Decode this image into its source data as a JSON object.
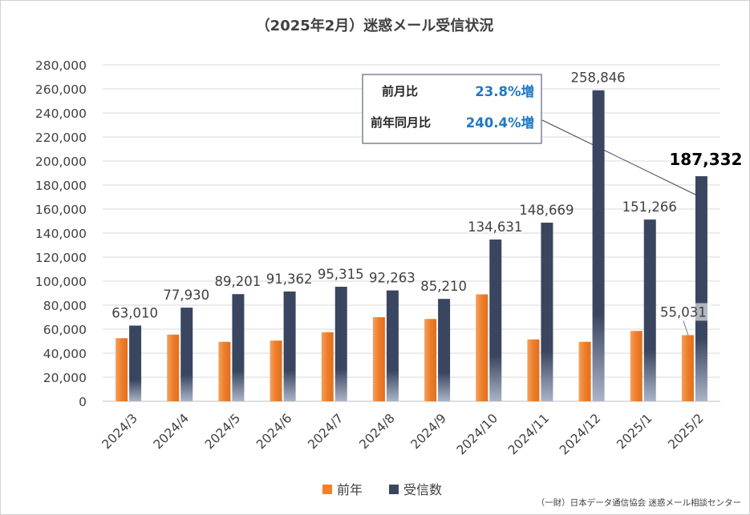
{
  "title": "（2025年2月）迷惑メール受信状況",
  "source": "（一財）日本データ通信協会 迷惑メール相談センター",
  "stats": {
    "mom_label": "前月比",
    "mom_value": "23.8%増",
    "yoy_label": "前年同月比",
    "yoy_value": "240.4%増"
  },
  "colors": {
    "previous_year": "#f0822a",
    "received": "#3a4660",
    "grid": "#d9d9d9",
    "accent_text": "#1f78c8"
  },
  "chart_data": {
    "type": "bar",
    "categories": [
      "2024/3",
      "2024/4",
      "2024/5",
      "2024/6",
      "2024/7",
      "2024/8",
      "2024/9",
      "2024/10",
      "2024/11",
      "2024/12",
      "2025/1",
      "2025/2"
    ],
    "series": [
      {
        "name": "前年",
        "values": [
          52500,
          55500,
          49500,
          50500,
          57500,
          70000,
          68500,
          89000,
          51500,
          49500,
          58500,
          55031
        ]
      },
      {
        "name": "受信数",
        "values": [
          63010,
          77930,
          89201,
          91362,
          95315,
          92263,
          85210,
          134631,
          148669,
          258846,
          151266,
          187332
        ]
      }
    ],
    "data_labels_received": [
      "63,010",
      "77,930",
      "89,201",
      "91,362",
      "95,315",
      "92,263",
      "85,210",
      "134,631",
      "148,669",
      "258,846",
      "151,266",
      "187,332"
    ],
    "data_label_previous_last": "55,031",
    "yticks": [
      "0",
      "20,000",
      "40,000",
      "60,000",
      "80,000",
      "100,000",
      "120,000",
      "140,000",
      "160,000",
      "180,000",
      "200,000",
      "220,000",
      "240,000",
      "260,000",
      "280,000"
    ],
    "ylim": [
      0,
      280000
    ],
    "grid": true,
    "legend_position": "bottom"
  }
}
